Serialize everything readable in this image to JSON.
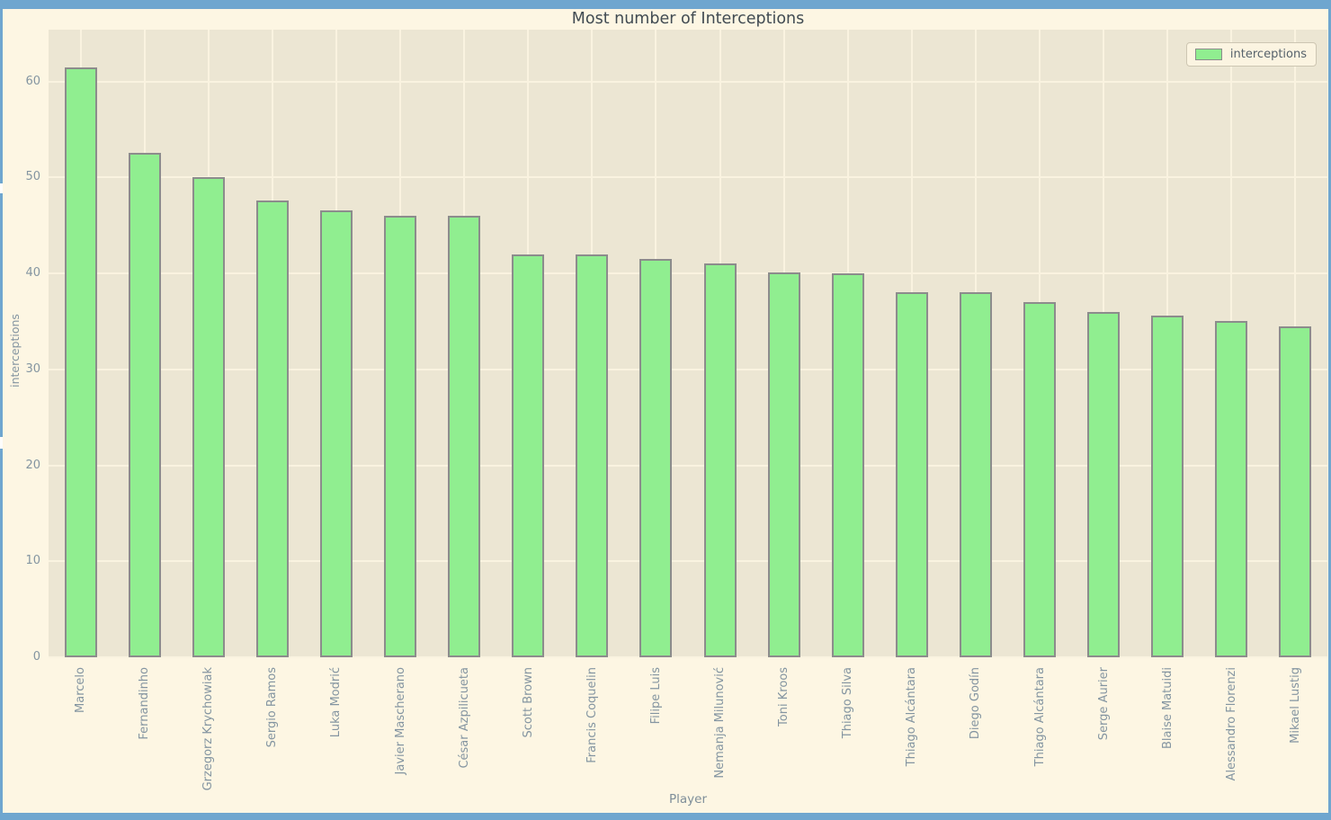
{
  "window": {
    "frame_color": "#6FA6CF"
  },
  "chart_data": {
    "type": "bar",
    "title": "Most number of Interceptions",
    "xlabel": "Player",
    "ylabel": "interceptions",
    "legend": {
      "label": "interceptions",
      "position": "upper right"
    },
    "grid": true,
    "ylim": [
      0,
      65.4
    ],
    "yticks": [
      0,
      10,
      20,
      30,
      40,
      50,
      60
    ],
    "categories": [
      "Marcelo",
      "Fernandinho",
      "Grzegorz Krychowiak",
      "Sergio Ramos",
      "Luka Modrić",
      "Javier Mascherano",
      "César Azpilicueta",
      "Scott Brown",
      "Francis Coquelin",
      "Filipe Luis",
      "Nemanja Milunović",
      "Toni Kroos",
      "Thiago Silva",
      "Thiago Alcántara",
      "Diego Godín",
      "Thiago Alcántara",
      "Serge Aurier",
      "Blaise Matuidi",
      "Alessandro Florenzi",
      "Mikael Lustig"
    ],
    "values": [
      61.5,
      52.6,
      50.0,
      47.6,
      46.6,
      46.0,
      46.0,
      42.0,
      42.0,
      41.5,
      41.0,
      40.1,
      40.0,
      38.0,
      38.0,
      37.0,
      36.0,
      35.6,
      35.0,
      34.5
    ],
    "colors": {
      "bar_fill": "#90EE90",
      "bar_edge": "#8C8C8C",
      "figure_bg": "#FDF6E3",
      "axes_bg": "#ECE6D3",
      "grid": "#FAF3E0",
      "tick_text": "#8495A1",
      "title_text": "#414B52"
    }
  }
}
